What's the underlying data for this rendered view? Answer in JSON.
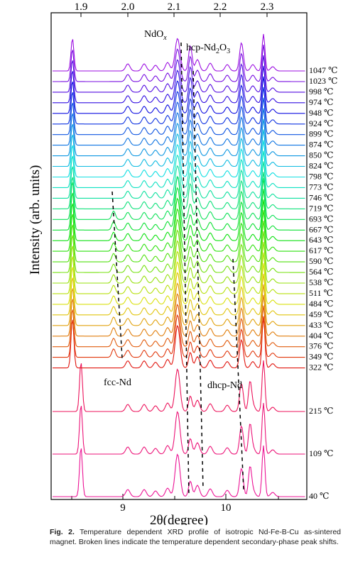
{
  "chart_data": {
    "type": "line",
    "top_axis": {
      "ticks": [
        "1.9",
        "2.0",
        "2.1",
        "2.2",
        "2.3"
      ]
    },
    "bottom_axis": {
      "ticks": [
        "9",
        "10"
      ],
      "label": "2θ(degree)"
    },
    "ylabel": "Intensity (arb. units)",
    "temperatures": [
      "1047 ℃",
      "1023 ℃",
      "998 ℃",
      "974 ℃",
      "948 ℃",
      "924 ℃",
      "899 ℃",
      "874 ℃",
      "850 ℃",
      "824 ℃",
      "798 ℃",
      "773 ℃",
      "746 ℃",
      "719 ℃",
      "693 ℃",
      "667 ℃",
      "643 ℃",
      "617 ℃",
      "590 ℃",
      "564 ℃",
      "538 ℃",
      "511 ℃",
      "484 ℃",
      "459 ℃",
      "433 ℃",
      "404 ℃",
      "376 ℃",
      "349 ℃",
      "322 ℃",
      "215 ℃",
      "109 ℃",
      "40 ℃"
    ],
    "annotations": {
      "ndox": "NdO",
      "ndox_sub": "x",
      "hcp": "hcp-Nd",
      "hcp_sub1": "2",
      "hcp_mid": "O",
      "hcp_sub2": "3",
      "fcc": "fcc-Nd",
      "dhcp": "dhcp-Nd"
    }
  },
  "caption": {
    "label": "Fig. 2.",
    "text": "Temperature dependent XRD profile of isotropic Nd-Fe-B-Cu as-sintered magnet. Broken lines indicate the temperature dependent secondary-phase peak shifts."
  }
}
